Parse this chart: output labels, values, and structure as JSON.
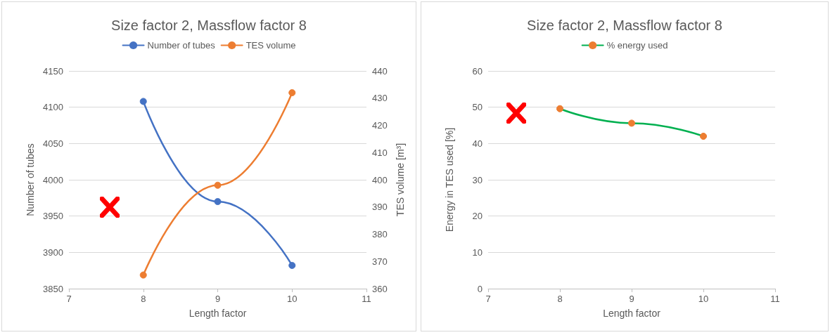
{
  "chart_data": [
    {
      "type": "line",
      "title": "Size factor 2, Massflow factor 8",
      "xlabel": "Length factor",
      "ylabel": "Number of tubes",
      "y2label": "TES volume [m³]",
      "x": [
        8,
        9,
        10
      ],
      "series": [
        {
          "name": "Number of tubes",
          "color": "#4472c4",
          "values": [
            4108,
            3970,
            3882
          ]
        },
        {
          "name": "TES volume",
          "color": "#ed7d31",
          "values": [
            365,
            398,
            432
          ],
          "axis": "y2"
        }
      ],
      "xlim": [
        7,
        11
      ],
      "xticks": [
        7,
        8,
        9,
        10,
        11
      ],
      "ylim": [
        3850,
        4150
      ],
      "yticks": [
        3850,
        3900,
        3950,
        4000,
        4050,
        4100,
        4150
      ],
      "y2lim": [
        360,
        440
      ],
      "y2ticks": [
        360,
        370,
        380,
        390,
        400,
        410,
        420,
        430,
        440
      ],
      "grid": "y",
      "legend": "top",
      "marker": "circle"
    },
    {
      "type": "line",
      "title": "Size factor 2, Massflow factor 8",
      "xlabel": "Length factor",
      "ylabel": "Energy in TES used [%]",
      "x": [
        8,
        9,
        10
      ],
      "series": [
        {
          "name": "% energy used",
          "color": "#00b050",
          "colors": [
            "#ed7d31",
            "#ed7d31",
            "#ed7d31"
          ],
          "values": [
            49.6,
            45.6,
            42
          ]
        }
      ],
      "xlim": [
        7,
        11
      ],
      "xticks": [
        7,
        8,
        9,
        10,
        11
      ],
      "ylim": [
        0,
        60
      ],
      "yticks": [
        0,
        10,
        20,
        30,
        40,
        50,
        60
      ],
      "grid": "y",
      "legend": "top",
      "marker": "circle"
    }
  ]
}
